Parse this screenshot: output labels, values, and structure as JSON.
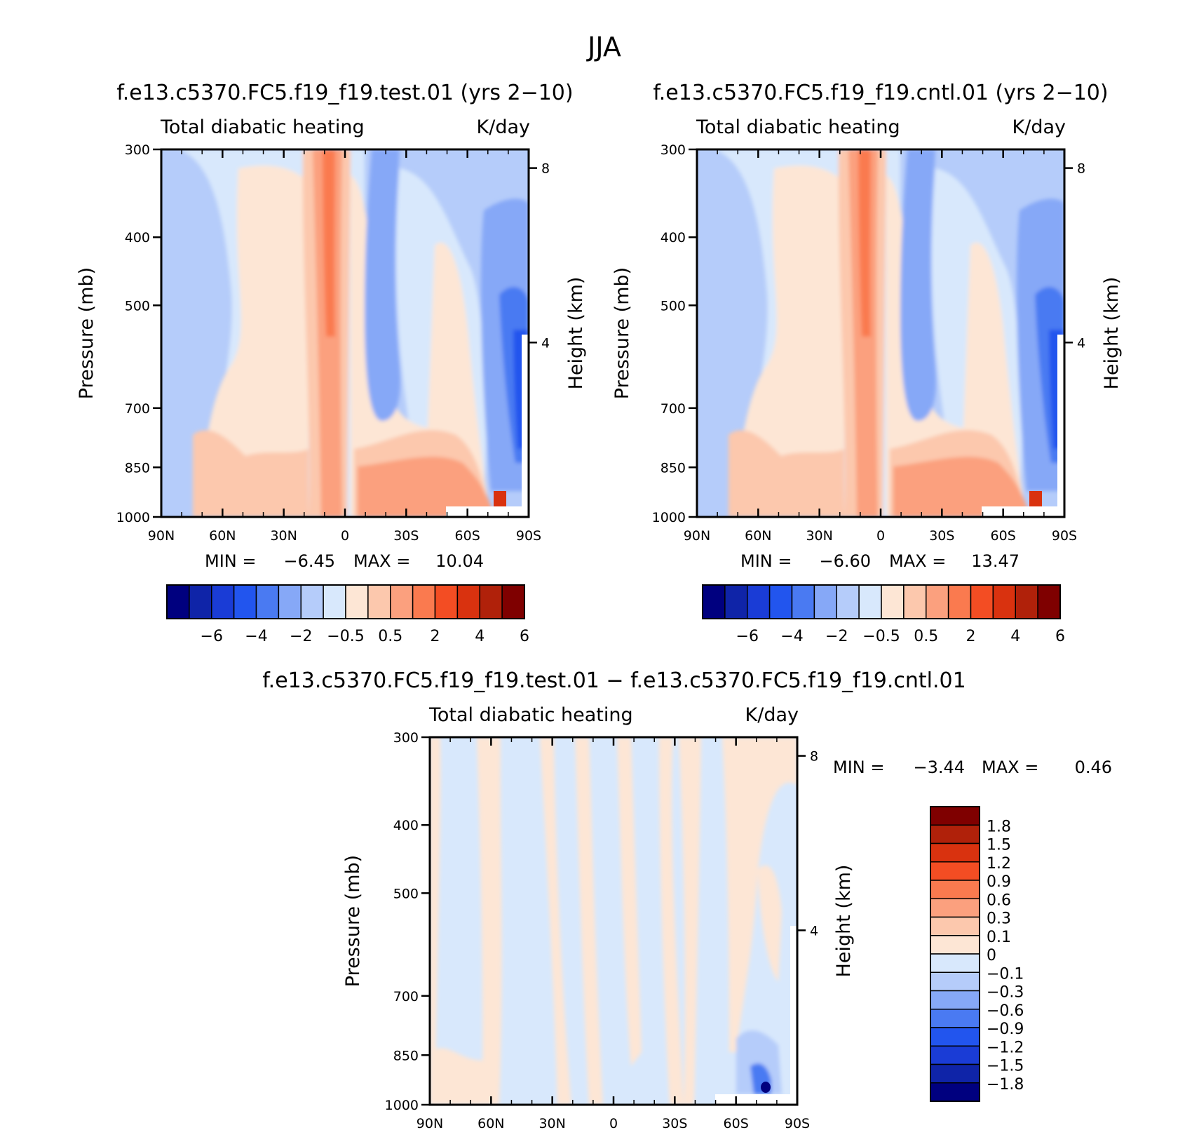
{
  "figure_title": "JJA",
  "chart_data": [
    {
      "type": "heatmap",
      "id": "test",
      "title": "f.e13.c5370.FC5.f19_f19.test.01 (yrs 2−10)",
      "left_string": "Total diabatic heating",
      "right_string": "K/day",
      "xlabel": "",
      "ylabel": "Pressure (mb)",
      "y2label": "Height (km)",
      "x_ticks": [
        "90N",
        "60N",
        "30N",
        "0",
        "30S",
        "60S",
        "90S"
      ],
      "x_tick_values": [
        90,
        60,
        30,
        0,
        -30,
        -60,
        -90
      ],
      "y_ticks": [
        "300",
        "400",
        "500",
        "700",
        "850",
        "1000"
      ],
      "y_tick_values": [
        300,
        400,
        500,
        700,
        850,
        1000
      ],
      "y2_ticks": [
        "8",
        "4"
      ],
      "y2_tick_values": [
        8,
        4
      ],
      "xlim": [
        90,
        -90
      ],
      "ylim": [
        1000,
        300
      ],
      "min_label": "MIN =",
      "min_value": "−6.45",
      "max_label": "MAX =",
      "max_value": "10.04",
      "colorbar_levels": [
        "−6",
        "−4",
        "−2",
        "−0.5",
        "0.5",
        "2",
        "4",
        "6"
      ],
      "colorbar_colors": [
        "#00007f",
        "#0f24a8",
        "#1a3cd6",
        "#2255ee",
        "#4a7af2",
        "#86a8f7",
        "#b5ccfa",
        "#d8e8fc",
        "#fde6d5",
        "#fcc8ad",
        "#fba07e",
        "#fa7a4f",
        "#f34d23",
        "#d9320f",
        "#b0210a",
        "#7f0000"
      ]
    },
    {
      "type": "heatmap",
      "id": "cntl",
      "title": "f.e13.c5370.FC5.f19_f19.cntl.01 (yrs 2−10)",
      "left_string": "Total diabatic heating",
      "right_string": "K/day",
      "ylabel": "Pressure (mb)",
      "y2label": "Height (km)",
      "x_ticks": [
        "90N",
        "60N",
        "30N",
        "0",
        "30S",
        "60S",
        "90S"
      ],
      "x_tick_values": [
        90,
        60,
        30,
        0,
        -30,
        -60,
        -90
      ],
      "y_ticks": [
        "300",
        "400",
        "500",
        "700",
        "850",
        "1000"
      ],
      "y_tick_values": [
        300,
        400,
        500,
        700,
        850,
        1000
      ],
      "y2_ticks": [
        "8",
        "4"
      ],
      "y2_tick_values": [
        8,
        4
      ],
      "xlim": [
        90,
        -90
      ],
      "ylim": [
        1000,
        300
      ],
      "min_label": "MIN =",
      "min_value": "−6.60",
      "max_label": "MAX =",
      "max_value": "13.47",
      "colorbar_levels": [
        "−6",
        "−4",
        "−2",
        "−0.5",
        "0.5",
        "2",
        "4",
        "6"
      ],
      "colorbar_colors": [
        "#00007f",
        "#0f24a8",
        "#1a3cd6",
        "#2255ee",
        "#4a7af2",
        "#86a8f7",
        "#b5ccfa",
        "#d8e8fc",
        "#fde6d5",
        "#fcc8ad",
        "#fba07e",
        "#fa7a4f",
        "#f34d23",
        "#d9320f",
        "#b0210a",
        "#7f0000"
      ]
    },
    {
      "type": "heatmap",
      "id": "diff",
      "title": "f.e13.c5370.FC5.f19_f19.test.01 − f.e13.c5370.FC5.f19_f19.cntl.01",
      "left_string": "Total diabatic heating",
      "right_string": "K/day",
      "ylabel": "Pressure (mb)",
      "y2label": "Height (km)",
      "x_ticks": [
        "90N",
        "60N",
        "30N",
        "0",
        "30S",
        "60S",
        "90S"
      ],
      "x_tick_values": [
        90,
        60,
        30,
        0,
        -30,
        -60,
        -90
      ],
      "y_ticks": [
        "300",
        "400",
        "500",
        "700",
        "850",
        "1000"
      ],
      "y_tick_values": [
        300,
        400,
        500,
        700,
        850,
        1000
      ],
      "y2_ticks": [
        "8",
        "4"
      ],
      "y2_tick_values": [
        8,
        4
      ],
      "xlim": [
        90,
        -90
      ],
      "ylim": [
        1000,
        300
      ],
      "min_label": "MIN =",
      "min_value": "−3.44",
      "max_label": "MAX =",
      "max_value": "0.46",
      "colorbar_levels": [
        "1.8",
        "1.5",
        "1.2",
        "0.9",
        "0.6",
        "0.3",
        "0.1",
        "0",
        "−0.1",
        "−0.3",
        "−0.6",
        "−0.9",
        "−1.2",
        "−1.5",
        "−1.8"
      ],
      "colorbar_colors": [
        "#7f0000",
        "#b0210a",
        "#d9320f",
        "#f34d23",
        "#fa7a4f",
        "#fba07e",
        "#fcc8ad",
        "#fde6d5",
        "#d8e8fc",
        "#b5ccfa",
        "#86a8f7",
        "#4a7af2",
        "#2255ee",
        "#1a3cd6",
        "#0f24a8",
        "#00007f"
      ]
    }
  ]
}
